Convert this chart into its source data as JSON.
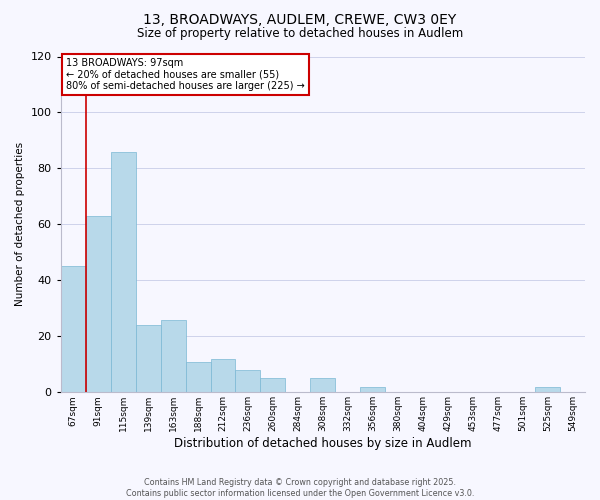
{
  "title": "13, BROADWAYS, AUDLEM, CREWE, CW3 0EY",
  "subtitle": "Size of property relative to detached houses in Audlem",
  "xlabel": "Distribution of detached houses by size in Audlem",
  "ylabel": "Number of detached properties",
  "categories": [
    "67sqm",
    "91sqm",
    "115sqm",
    "139sqm",
    "163sqm",
    "188sqm",
    "212sqm",
    "236sqm",
    "260sqm",
    "284sqm",
    "308sqm",
    "332sqm",
    "356sqm",
    "380sqm",
    "404sqm",
    "429sqm",
    "453sqm",
    "477sqm",
    "501sqm",
    "525sqm",
    "549sqm"
  ],
  "values": [
    45,
    63,
    86,
    24,
    26,
    11,
    12,
    8,
    5,
    0,
    5,
    0,
    2,
    0,
    0,
    0,
    0,
    0,
    0,
    2,
    0
  ],
  "bar_color": "#b8d9ea",
  "bar_edge_color": "#7ab8d4",
  "vline_x": 1,
  "vline_color": "#cc0000",
  "annotation_title": "13 BROADWAYS: 97sqm",
  "annotation_line1": "← 20% of detached houses are smaller (55)",
  "annotation_line2": "80% of semi-detached houses are larger (225) →",
  "annotation_box_color": "#ffffff",
  "annotation_box_edge": "#cc0000",
  "ylim": [
    0,
    120
  ],
  "yticks": [
    0,
    20,
    40,
    60,
    80,
    100,
    120
  ],
  "footer1": "Contains HM Land Registry data © Crown copyright and database right 2025.",
  "footer2": "Contains public sector information licensed under the Open Government Licence v3.0.",
  "background_color": "#f7f7ff"
}
